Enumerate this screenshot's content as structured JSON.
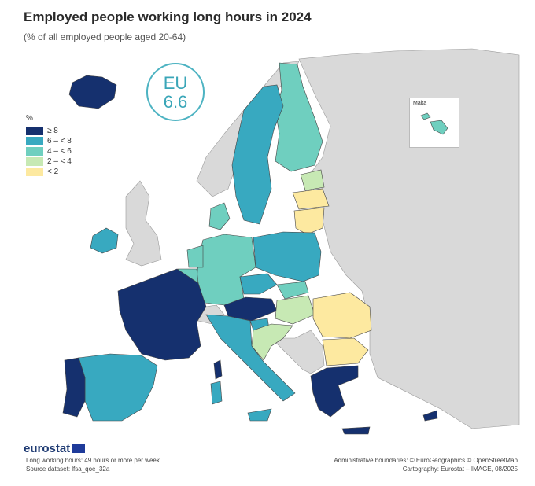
{
  "title": "Employed people working long hours in 2024",
  "subtitle": "(% of all employed people aged 20-64)",
  "eu_badge": {
    "label": "EU",
    "value": "6.6"
  },
  "legend": {
    "unit": "%",
    "classes": [
      {
        "label": "≥ 8",
        "color": "#15306e"
      },
      {
        "label": "6 – < 8",
        "color": "#38a9c0"
      },
      {
        "label": "4 – < 6",
        "color": "#6fcfbf"
      },
      {
        "label": "2 – < 4",
        "color": "#c7e9b4"
      },
      {
        "label": "< 2",
        "color": "#fde9a0"
      }
    ]
  },
  "inset": {
    "label": "Malta"
  },
  "footer": {
    "logo": "eurostat",
    "note": "Long working hours: 49 hours or more per week.",
    "source": "Source dataset: lfsa_qoe_32a",
    "boundaries": "Administrative boundaries: © EuroGeographics © OpenStreetMap",
    "cartography": "Cartography: Eurostat – IMAGE, 08/2025"
  },
  "colors": {
    "sea": "#ffffff",
    "non_eu": "#d9d9d9",
    "border": "#444444"
  }
}
